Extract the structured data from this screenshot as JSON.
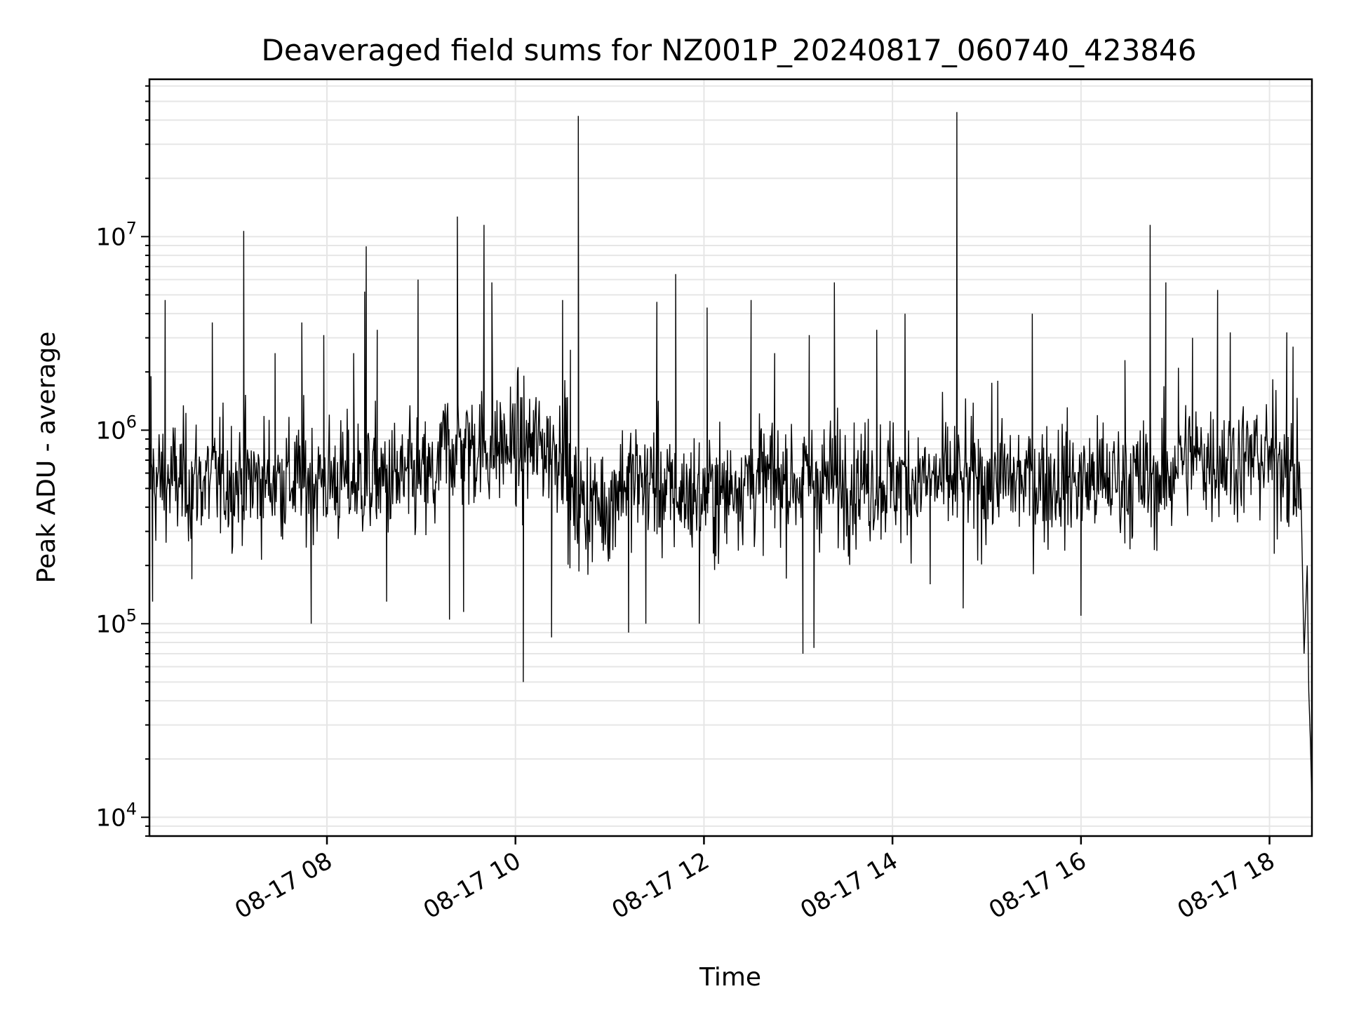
{
  "chart_data": {
    "type": "line",
    "title": "Deaveraged field sums for NZ001P_20240817_060740_423846",
    "xlabel": "Time",
    "ylabel": "Peak ADU - average",
    "yscale": "log",
    "xlim": [
      "2024-08-17T06:07",
      "2024-08-17T18:27"
    ],
    "ylim": [
      8000,
      65000000
    ],
    "x_ticks": [
      "08-17 08",
      "08-17 10",
      "08-17 12",
      "08-17 14",
      "08-17 16",
      "08-17 18"
    ],
    "y_ticks": [
      {
        "base": "10",
        "exp": "4"
      },
      {
        "base": "10",
        "exp": "5"
      },
      {
        "base": "10",
        "exp": "6"
      },
      {
        "base": "10",
        "exp": "7"
      }
    ],
    "grid": "on",
    "line_color": "#000000",
    "baseline_level": 550000,
    "noise_points": 1800,
    "series": [
      {
        "points": [
          [
            "2024-08-17T06:08",
            1900000
          ],
          [
            "2024-08-17T06:09",
            130000
          ],
          [
            "2024-08-17T06:17",
            4700000
          ],
          [
            "2024-08-17T06:34",
            170000
          ],
          [
            "2024-08-17T06:47",
            3600000
          ],
          [
            "2024-08-17T07:07",
            10700000
          ],
          [
            "2024-08-17T07:27",
            2500000
          ],
          [
            "2024-08-17T07:44",
            3600000
          ],
          [
            "2024-08-17T07:50",
            100000
          ],
          [
            "2024-08-17T07:58",
            3100000
          ],
          [
            "2024-08-17T08:17",
            2500000
          ],
          [
            "2024-08-17T08:24",
            5200000
          ],
          [
            "2024-08-17T08:25",
            8900000
          ],
          [
            "2024-08-17T08:32",
            3300000
          ],
          [
            "2024-08-17T08:38",
            130000
          ],
          [
            "2024-08-17T08:58",
            6000000
          ],
          [
            "2024-08-17T09:18",
            105000
          ],
          [
            "2024-08-17T09:23",
            12700000
          ],
          [
            "2024-08-17T09:27",
            115000
          ],
          [
            "2024-08-17T09:40",
            11500000
          ],
          [
            "2024-08-17T09:45",
            5800000
          ],
          [
            "2024-08-17T10:05",
            50000
          ],
          [
            "2024-08-17T10:23",
            85000
          ],
          [
            "2024-08-17T10:30",
            4700000
          ],
          [
            "2024-08-17T10:35",
            2600000
          ],
          [
            "2024-08-17T10:40",
            42000000
          ],
          [
            "2024-08-17T11:12",
            90000
          ],
          [
            "2024-08-17T11:23",
            100000
          ],
          [
            "2024-08-17T11:30",
            4600000
          ],
          [
            "2024-08-17T11:42",
            6400000
          ],
          [
            "2024-08-17T11:57",
            100000
          ],
          [
            "2024-08-17T12:02",
            4300000
          ],
          [
            "2024-08-17T12:30",
            4700000
          ],
          [
            "2024-08-17T12:45",
            2500000
          ],
          [
            "2024-08-17T13:03",
            70000
          ],
          [
            "2024-08-17T13:07",
            3100000
          ],
          [
            "2024-08-17T13:10",
            75000
          ],
          [
            "2024-08-17T13:23",
            5800000
          ],
          [
            "2024-08-17T13:50",
            3300000
          ],
          [
            "2024-08-17T14:08",
            4000000
          ],
          [
            "2024-08-17T14:24",
            160000
          ],
          [
            "2024-08-17T14:41",
            44000000
          ],
          [
            "2024-08-17T14:45",
            120000
          ],
          [
            "2024-08-17T15:07",
            1800000
          ],
          [
            "2024-08-17T15:29",
            4000000
          ],
          [
            "2024-08-17T16:00",
            110000
          ],
          [
            "2024-08-17T16:28",
            2300000
          ],
          [
            "2024-08-17T16:44",
            11500000
          ],
          [
            "2024-08-17T16:54",
            5800000
          ],
          [
            "2024-08-17T17:02",
            2100000
          ],
          [
            "2024-08-17T17:11",
            3000000
          ],
          [
            "2024-08-17T17:27",
            5300000
          ],
          [
            "2024-08-17T17:35",
            3200000
          ],
          [
            "2024-08-17T17:52",
            1200000
          ],
          [
            "2024-08-17T18:03",
            230000
          ],
          [
            "2024-08-17T18:11",
            3200000
          ],
          [
            "2024-08-17T18:15",
            2700000
          ],
          [
            "2024-08-17T18:20",
            500000
          ],
          [
            "2024-08-17T18:22",
            70000
          ],
          [
            "2024-08-17T18:24",
            200000
          ],
          [
            "2024-08-17T18:25",
            45000
          ],
          [
            "2024-08-17T18:26",
            25000
          ],
          [
            "2024-08-17T18:27",
            12000
          ]
        ]
      }
    ]
  }
}
